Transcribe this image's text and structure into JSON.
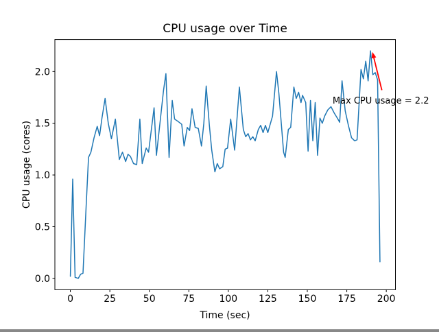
{
  "figure": {
    "background": "#ffffff"
  },
  "chart_data": {
    "type": "line",
    "title": "CPU usage over Time",
    "xlabel": "Time (sec)",
    "ylabel": "CPU usage (cores)",
    "xlim": [
      -9.8,
      205.8
    ],
    "ylim": [
      -0.11,
      2.31
    ],
    "xticks": [
      0,
      25,
      50,
      75,
      100,
      125,
      150,
      175,
      200
    ],
    "ytick_labels": [
      "0.0",
      "0.5",
      "1.0",
      "1.5",
      "2.0"
    ],
    "ytick_values": [
      0.0,
      0.5,
      1.0,
      1.5,
      2.0
    ],
    "grid": false,
    "legend_position": "none",
    "line_color": "#1f77b4",
    "line_width": 1.5,
    "spine_color": "#000000",
    "points": [
      [
        0,
        0.02
      ],
      [
        1.5,
        0.96
      ],
      [
        3,
        0.01
      ],
      [
        5,
        0.0
      ],
      [
        6.5,
        0.04
      ],
      [
        8,
        0.05
      ],
      [
        10,
        0.7
      ],
      [
        11.5,
        1.17
      ],
      [
        13,
        1.22
      ],
      [
        15,
        1.36
      ],
      [
        17,
        1.47
      ],
      [
        18.5,
        1.38
      ],
      [
        20,
        1.55
      ],
      [
        22,
        1.74
      ],
      [
        24,
        1.5
      ],
      [
        26,
        1.35
      ],
      [
        28.5,
        1.54
      ],
      [
        31,
        1.15
      ],
      [
        33,
        1.22
      ],
      [
        35,
        1.13
      ],
      [
        36.5,
        1.2
      ],
      [
        38,
        1.18
      ],
      [
        40,
        1.11
      ],
      [
        42,
        1.1
      ],
      [
        44,
        1.54
      ],
      [
        45.5,
        1.11
      ],
      [
        48,
        1.26
      ],
      [
        49.5,
        1.22
      ],
      [
        53,
        1.65
      ],
      [
        54.5,
        1.19
      ],
      [
        59,
        1.82
      ],
      [
        60.5,
        1.98
      ],
      [
        62.5,
        1.17
      ],
      [
        64.5,
        1.72
      ],
      [
        66,
        1.54
      ],
      [
        68,
        1.52
      ],
      [
        70.5,
        1.49
      ],
      [
        72,
        1.28
      ],
      [
        74,
        1.46
      ],
      [
        75.5,
        1.43
      ],
      [
        77,
        1.64
      ],
      [
        79,
        1.46
      ],
      [
        81,
        1.45
      ],
      [
        83,
        1.28
      ],
      [
        84.5,
        1.5
      ],
      [
        86,
        1.86
      ],
      [
        88,
        1.48
      ],
      [
        89.5,
        1.24
      ],
      [
        91.5,
        1.03
      ],
      [
        93,
        1.11
      ],
      [
        94.5,
        1.06
      ],
      [
        96.5,
        1.08
      ],
      [
        98,
        1.25
      ],
      [
        99.5,
        1.26
      ],
      [
        101.5,
        1.54
      ],
      [
        104,
        1.24
      ],
      [
        107,
        1.85
      ],
      [
        109.5,
        1.44
      ],
      [
        111,
        1.37
      ],
      [
        112.5,
        1.4
      ],
      [
        114,
        1.34
      ],
      [
        115.5,
        1.37
      ],
      [
        117,
        1.33
      ],
      [
        119,
        1.44
      ],
      [
        120.5,
        1.48
      ],
      [
        122,
        1.41
      ],
      [
        123.5,
        1.48
      ],
      [
        125,
        1.41
      ],
      [
        128,
        1.57
      ],
      [
        130.5,
        2.0
      ],
      [
        132,
        1.79
      ],
      [
        135,
        1.22
      ],
      [
        136,
        1.17
      ],
      [
        138,
        1.44
      ],
      [
        139.5,
        1.46
      ],
      [
        141.5,
        1.85
      ],
      [
        143,
        1.74
      ],
      [
        144.5,
        1.8
      ],
      [
        146,
        1.7
      ],
      [
        147,
        1.77
      ],
      [
        149,
        1.7
      ],
      [
        150.5,
        1.23
      ],
      [
        152,
        1.72
      ],
      [
        153.5,
        1.33
      ],
      [
        155,
        1.7
      ],
      [
        156.5,
        1.19
      ],
      [
        158,
        1.55
      ],
      [
        159.5,
        1.5
      ],
      [
        161,
        1.57
      ],
      [
        163,
        1.63
      ],
      [
        165,
        1.66
      ],
      [
        167,
        1.6
      ],
      [
        169,
        1.55
      ],
      [
        170.5,
        1.51
      ],
      [
        172,
        1.91
      ],
      [
        174,
        1.62
      ],
      [
        176,
        1.48
      ],
      [
        178,
        1.36
      ],
      [
        180,
        1.33
      ],
      [
        181.5,
        1.34
      ],
      [
        184,
        2.02
      ],
      [
        185.5,
        1.93
      ],
      [
        187,
        2.1
      ],
      [
        188.5,
        1.91
      ],
      [
        190,
        2.2
      ],
      [
        191.5,
        1.97
      ],
      [
        193,
        1.99
      ],
      [
        194.5,
        1.92
      ],
      [
        196,
        0.16
      ]
    ],
    "annotation": {
      "text": "Max CPU usage = 2.2",
      "color": "#ff0000",
      "xy": [
        191.2,
        2.19
      ],
      "arrow_tail": [
        197.2,
        1.82
      ],
      "text_pos": [
        166,
        1.72
      ]
    }
  }
}
